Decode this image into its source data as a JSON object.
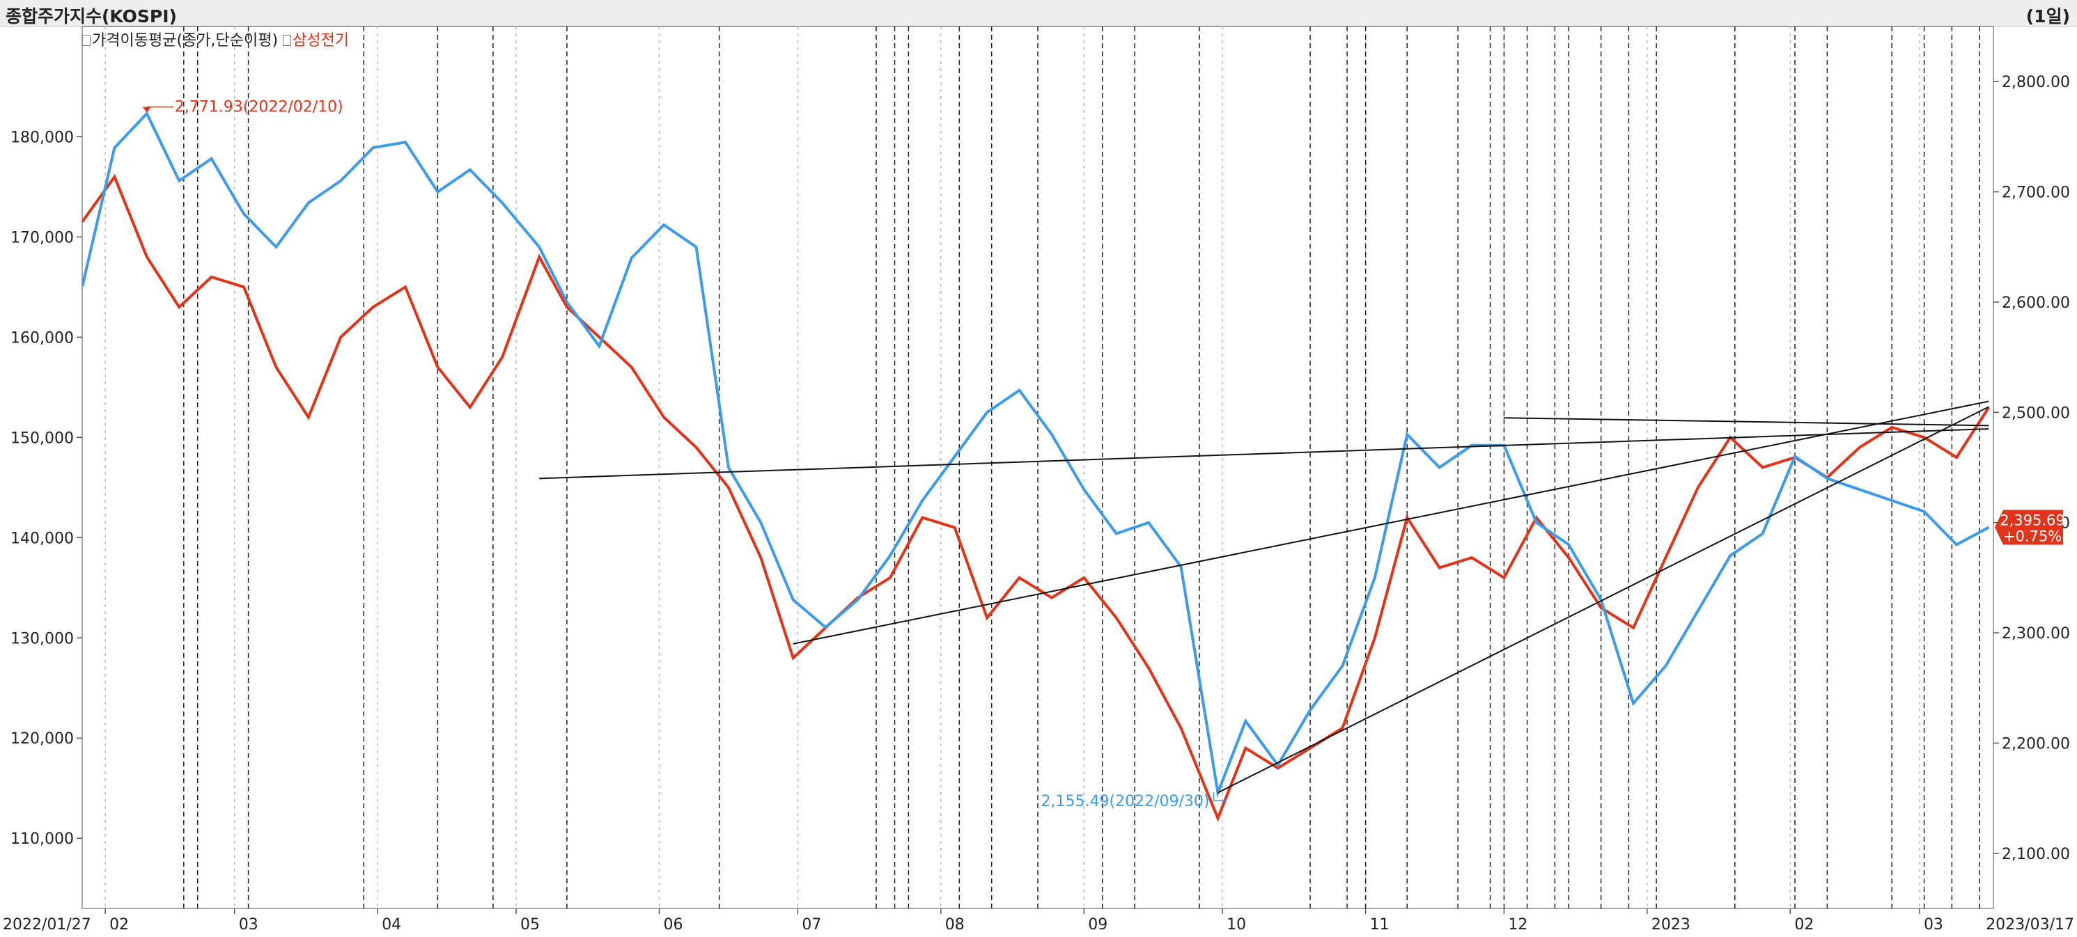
{
  "window": {
    "title": "종합주가지수(KOSPI)",
    "period": "(1일)"
  },
  "legend": [
    {
      "label": "가격이동평균(종가,단순이평)"
    },
    {
      "label": "삼성전기",
      "color": "#e0341b"
    }
  ],
  "colors": {
    "kospi": "#3d9be9",
    "samsung": "#e0341b",
    "trend": "#111111",
    "grid": "#bbbbbb"
  },
  "chart_data": {
    "type": "line",
    "x_start": "2022/01/27",
    "x_end": "2023/03/17",
    "x_ticks": [
      "02",
      "03",
      "04",
      "05",
      "06",
      "07",
      "08",
      "09",
      "10",
      "11",
      "12",
      "2023",
      "02",
      "03"
    ],
    "y_left": {
      "ticks": [
        "180,000",
        "170,000",
        "160,000",
        "150,000",
        "140,000",
        "130,000",
        "120,000",
        "110,000"
      ],
      "range": [
        103000,
        191000
      ]
    },
    "y_right": {
      "ticks": [
        "2,800.00",
        "2,700.00",
        "2,600.00",
        "2,500.00",
        "2,400.00",
        "2,300.00",
        "2,200.00",
        "2,100.00"
      ],
      "range": [
        2050,
        2850
      ]
    },
    "series": [
      {
        "name": "종합주가지수(KOSPI)",
        "axis": "right",
        "x": [
          "2022-01-27",
          "2022-02-03",
          "2022-02-10",
          "2022-02-17",
          "2022-02-24",
          "2022-03-03",
          "2022-03-10",
          "2022-03-17",
          "2022-03-24",
          "2022-03-31",
          "2022-04-07",
          "2022-04-14",
          "2022-04-21",
          "2022-04-28",
          "2022-05-06",
          "2022-05-12",
          "2022-05-19",
          "2022-05-26",
          "2022-06-02",
          "2022-06-09",
          "2022-06-16",
          "2022-06-23",
          "2022-06-30",
          "2022-07-07",
          "2022-07-14",
          "2022-07-21",
          "2022-07-28",
          "2022-08-04",
          "2022-08-11",
          "2022-08-18",
          "2022-08-25",
          "2022-09-01",
          "2022-09-08",
          "2022-09-15",
          "2022-09-22",
          "2022-09-30",
          "2022-10-06",
          "2022-10-13",
          "2022-10-20",
          "2022-10-27",
          "2022-11-03",
          "2022-11-10",
          "2022-11-17",
          "2022-11-24",
          "2022-12-01",
          "2022-12-08",
          "2022-12-15",
          "2022-12-22",
          "2022-12-29",
          "2023-01-05",
          "2023-01-12",
          "2023-01-19",
          "2023-01-26",
          "2023-02-02",
          "2023-02-09",
          "2023-02-16",
          "2023-02-23",
          "2023-03-02",
          "2023-03-09",
          "2023-03-16"
        ],
        "values": [
          2614,
          2740,
          2771,
          2710,
          2730,
          2680,
          2650,
          2690,
          2710,
          2740,
          2745,
          2700,
          2720,
          2690,
          2650,
          2600,
          2560,
          2640,
          2670,
          2650,
          2450,
          2400,
          2330,
          2305,
          2330,
          2370,
          2420,
          2460,
          2500,
          2520,
          2480,
          2430,
          2390,
          2400,
          2360,
          2155,
          2220,
          2180,
          2230,
          2270,
          2350,
          2480,
          2450,
          2470,
          2470,
          2400,
          2380,
          2330,
          2236,
          2270,
          2320,
          2370,
          2390,
          2460,
          2440,
          2430,
          2420,
          2410,
          2380,
          2395.69
        ]
      },
      {
        "name": "삼성전기",
        "axis": "left",
        "x": [
          "2022-01-27",
          "2022-02-03",
          "2022-02-10",
          "2022-02-17",
          "2022-02-24",
          "2022-03-03",
          "2022-03-10",
          "2022-03-17",
          "2022-03-24",
          "2022-03-31",
          "2022-04-07",
          "2022-04-14",
          "2022-04-21",
          "2022-04-28",
          "2022-05-06",
          "2022-05-12",
          "2022-05-19",
          "2022-05-26",
          "2022-06-02",
          "2022-06-09",
          "2022-06-16",
          "2022-06-23",
          "2022-06-30",
          "2022-07-07",
          "2022-07-14",
          "2022-07-21",
          "2022-07-28",
          "2022-08-04",
          "2022-08-11",
          "2022-08-18",
          "2022-08-25",
          "2022-09-01",
          "2022-09-08",
          "2022-09-15",
          "2022-09-22",
          "2022-09-30",
          "2022-10-06",
          "2022-10-13",
          "2022-10-20",
          "2022-10-27",
          "2022-11-03",
          "2022-11-10",
          "2022-11-17",
          "2022-11-24",
          "2022-12-01",
          "2022-12-08",
          "2022-12-15",
          "2022-12-22",
          "2022-12-29",
          "2023-01-05",
          "2023-01-12",
          "2023-01-19",
          "2023-01-26",
          "2023-02-02",
          "2023-02-09",
          "2023-02-16",
          "2023-02-23",
          "2023-03-02",
          "2023-03-09",
          "2023-03-16"
        ],
        "values": [
          171500,
          176000,
          168000,
          163000,
          166000,
          165000,
          157000,
          152000,
          160000,
          163000,
          165000,
          157000,
          153000,
          158000,
          168000,
          163000,
          160000,
          157000,
          152000,
          149000,
          145000,
          138000,
          128000,
          131000,
          134000,
          136000,
          142000,
          141000,
          132000,
          136000,
          134000,
          136000,
          132000,
          127000,
          121000,
          112000,
          119000,
          117000,
          119000,
          121000,
          130000,
          142000,
          137000,
          138000,
          136000,
          142000,
          138000,
          133000,
          131000,
          138000,
          145000,
          150000,
          147000,
          148000,
          146000,
          149000,
          151000,
          150000,
          148000,
          153000
        ]
      }
    ],
    "annotations": [
      {
        "text": "2,771.93(2022/02/10)",
        "series": "종합주가지수(KOSPI)",
        "color": "#e0341b"
      },
      {
        "text": "2,155.49(2022/09/30)",
        "series": "종합주가지수(KOSPI)",
        "color": "#3d9be9"
      }
    ],
    "last_value": {
      "value": "2,395.69",
      "change": "+0.75%",
      "color": "#e0341b"
    },
    "grid": true,
    "legend_position": "top-left"
  }
}
